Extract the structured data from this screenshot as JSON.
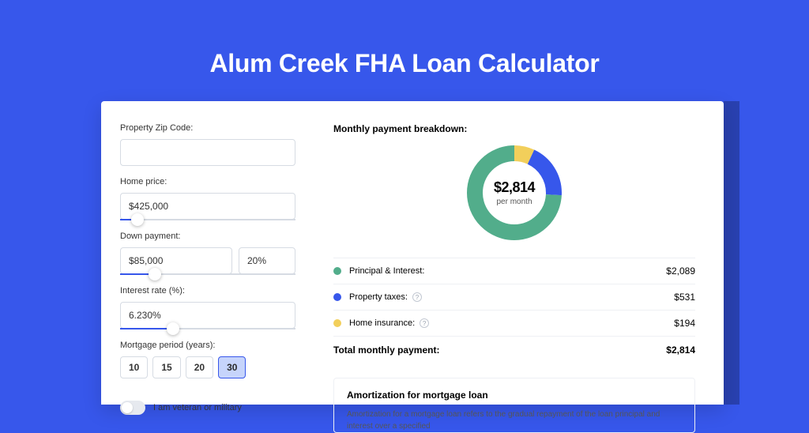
{
  "page": {
    "title": "Alum Creek FHA Loan Calculator",
    "background_color": "#3757eb",
    "title_color": "#ffffff",
    "title_fontsize": 32
  },
  "form": {
    "zip": {
      "label": "Property Zip Code:",
      "value": ""
    },
    "home_price": {
      "label": "Home price:",
      "value": "$425,000",
      "slider_pct": 10
    },
    "down_payment": {
      "label": "Down payment:",
      "amount": "$85,000",
      "percent": "20%",
      "slider_pct": 20
    },
    "interest_rate": {
      "label": "Interest rate (%):",
      "value": "6.230%",
      "slider_pct": 30
    },
    "mortgage_period": {
      "label": "Mortgage period (years):",
      "options": [
        "10",
        "15",
        "20",
        "30"
      ],
      "selected": "30"
    },
    "veteran": {
      "label": "I am veteran or military",
      "checked": false
    }
  },
  "breakdown": {
    "title": "Monthly payment breakdown:",
    "center_amount": "$2,814",
    "center_sub": "per month",
    "donut": {
      "stroke_width": 20,
      "slices": [
        {
          "key": "principal_interest",
          "value": 2089,
          "pct": 0.742,
          "color": "#52ad8b"
        },
        {
          "key": "property_taxes",
          "value": 531,
          "pct": 0.189,
          "color": "#3757eb"
        },
        {
          "key": "home_insurance",
          "value": 194,
          "pct": 0.069,
          "color": "#f2cf5b"
        }
      ]
    },
    "legend": [
      {
        "label": "Principal & Interest:",
        "value": "$2,089",
        "color": "#52ad8b",
        "help": false
      },
      {
        "label": "Property taxes:",
        "value": "$531",
        "color": "#3757eb",
        "help": true
      },
      {
        "label": "Home insurance:",
        "value": "$194",
        "color": "#f2cf5b",
        "help": true
      }
    ],
    "total": {
      "label": "Total monthly payment:",
      "value": "$2,814"
    }
  },
  "amortization": {
    "title": "Amortization for mortgage loan",
    "body": "Amortization for a mortgage loan refers to the gradual repayment of the loan principal and interest over a specified"
  },
  "colors": {
    "border": "#d6dbe3",
    "divider": "#eef0f4",
    "accent": "#3757eb",
    "selected_bg": "#c6d4fb"
  }
}
